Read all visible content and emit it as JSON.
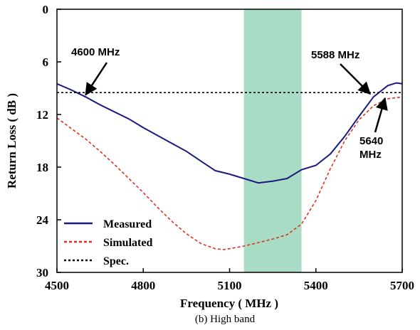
{
  "chart_data": {
    "type": "line",
    "title": "",
    "xlabel": "Frequency ( MHz  )",
    "ylabel": "Return Loss ( dB )",
    "caption": "(b) High band",
    "xlim": [
      4500,
      5700
    ],
    "ylim": [
      0,
      30
    ],
    "y_inverted": true,
    "xticks": [
      4500,
      4800,
      5100,
      5400,
      5700
    ],
    "yticks": [
      0,
      6,
      12,
      18,
      24,
      30
    ],
    "grid": false,
    "legend_position": "bottom-left",
    "shaded_band": {
      "x_start": 5150,
      "x_end": 5350,
      "color": "#a8dcc4"
    },
    "series": [
      {
        "name": "Measured",
        "color": "#1a1a80",
        "style": "solid",
        "x": [
          4500,
          4550,
          4600,
          4650,
          4700,
          4750,
          4800,
          4850,
          4900,
          4950,
          5000,
          5050,
          5100,
          5150,
          5200,
          5250,
          5300,
          5350,
          5400,
          5450,
          5500,
          5550,
          5600,
          5650,
          5680,
          5700
        ],
        "y": [
          8.5,
          9.2,
          10.0,
          10.9,
          11.7,
          12.5,
          13.5,
          14.4,
          15.3,
          16.2,
          17.3,
          18.4,
          18.8,
          19.3,
          19.8,
          19.6,
          19.3,
          18.3,
          17.8,
          16.5,
          14.5,
          12.2,
          10.0,
          8.7,
          8.4,
          8.5
        ]
      },
      {
        "name": "Simulated",
        "color": "#e03020",
        "style": "dashed",
        "x": [
          4500,
          4550,
          4600,
          4650,
          4700,
          4750,
          4800,
          4850,
          4900,
          4950,
          5000,
          5050,
          5080,
          5100,
          5150,
          5200,
          5250,
          5300,
          5350,
          5400,
          5450,
          5500,
          5550,
          5600,
          5650,
          5700
        ],
        "y": [
          12.4,
          13.6,
          14.8,
          16.2,
          17.7,
          19.3,
          20.9,
          22.6,
          24.2,
          25.6,
          26.7,
          27.3,
          27.4,
          27.3,
          27.0,
          26.6,
          26.2,
          25.7,
          24.5,
          21.8,
          18.2,
          15.0,
          12.6,
          11.0,
          10.2,
          10.0
        ]
      },
      {
        "name": "Spec.",
        "color": "#000000",
        "style": "dotted",
        "x": [
          4500,
          5700
        ],
        "y": [
          9.5,
          9.5
        ]
      }
    ],
    "annotations": [
      {
        "label": "4600 MHz",
        "x": 4600,
        "y": 9.9
      },
      {
        "label": "5588 MHz",
        "x": 5588,
        "y": 9.8
      },
      {
        "label_line1": "5640",
        "label_line2": "MHz",
        "x": 5640,
        "y": 10.0
      }
    ]
  }
}
